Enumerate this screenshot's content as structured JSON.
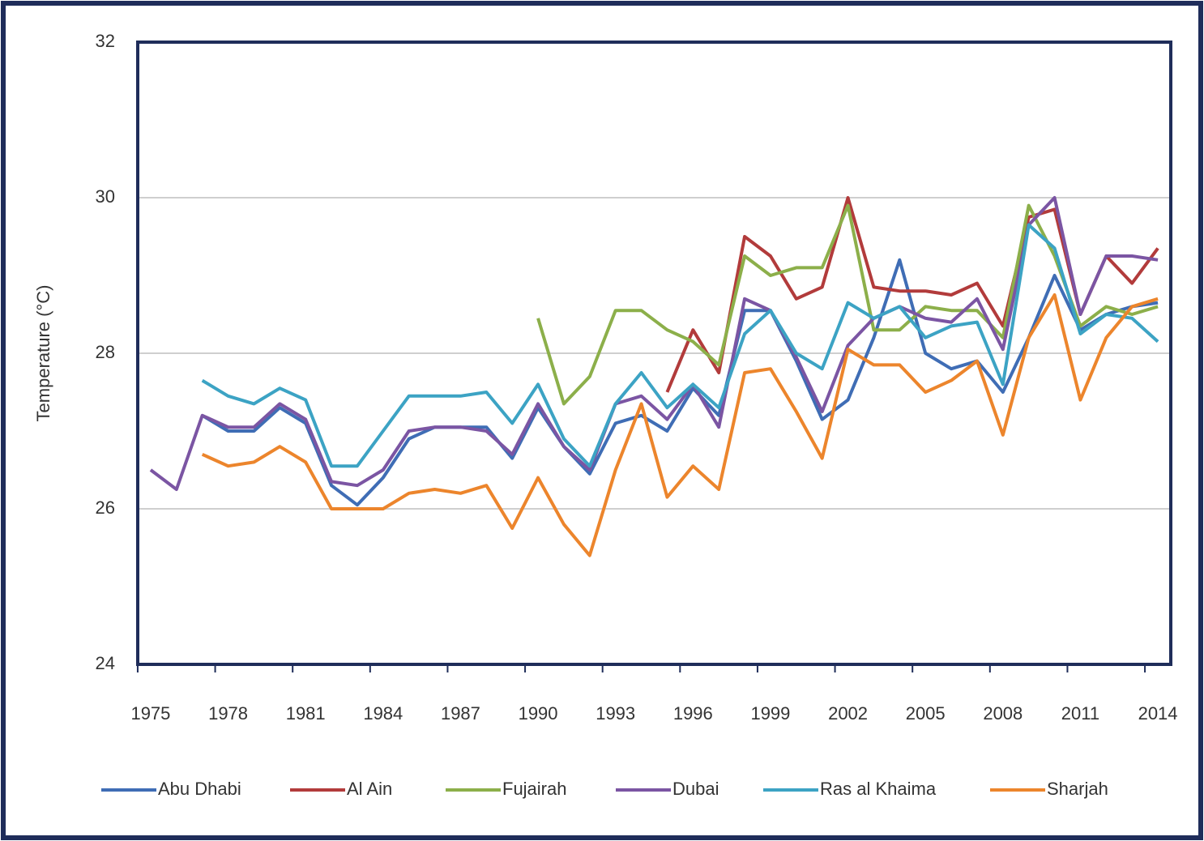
{
  "chart_data": {
    "type": "line",
    "y_label": "Temperature (°C)",
    "x": [
      1975,
      1976,
      1977,
      1978,
      1979,
      1980,
      1981,
      1982,
      1983,
      1984,
      1985,
      1986,
      1987,
      1988,
      1989,
      1990,
      1991,
      1992,
      1993,
      1994,
      1995,
      1996,
      1997,
      1998,
      1999,
      2000,
      2001,
      2002,
      2003,
      2004,
      2005,
      2006,
      2007,
      2008,
      2009,
      2010,
      2011,
      2012,
      2013,
      2014
    ],
    "xlim": [
      1974.5,
      2014.5
    ],
    "xticks": [
      1975,
      1978,
      1981,
      1984,
      1987,
      1990,
      1993,
      1996,
      1999,
      2002,
      2005,
      2008,
      2011,
      2014
    ],
    "ylim": [
      24,
      32
    ],
    "yticks": [
      24,
      26,
      28,
      30,
      32
    ],
    "grid": true,
    "legend": "bottom",
    "series": [
      {
        "name": "Abu Dhabi",
        "color": "#3f6db5",
        "values": [
          null,
          null,
          27.2,
          27.0,
          27.0,
          27.3,
          27.1,
          26.3,
          26.05,
          26.4,
          26.9,
          27.05,
          27.05,
          27.05,
          26.65,
          27.3,
          26.8,
          26.45,
          27.1,
          27.2,
          27.0,
          27.55,
          27.2,
          28.55,
          28.55,
          27.9,
          27.15,
          27.4,
          28.2,
          29.2,
          28.0,
          27.8,
          27.9,
          27.5,
          28.2,
          29.0,
          28.3,
          28.5,
          28.6,
          28.65
        ]
      },
      {
        "name": "Al Ain",
        "color": "#b23b3b",
        "values": [
          null,
          null,
          null,
          null,
          null,
          null,
          null,
          null,
          null,
          null,
          null,
          null,
          null,
          null,
          null,
          null,
          null,
          null,
          null,
          null,
          27.5,
          28.3,
          27.75,
          29.5,
          29.25,
          28.7,
          28.85,
          30.0,
          28.85,
          28.8,
          28.8,
          28.75,
          28.9,
          28.35,
          29.75,
          29.85,
          28.5,
          29.25,
          28.9,
          29.35
        ]
      },
      {
        "name": "Fujairah",
        "color": "#8caf4a",
        "values": [
          null,
          null,
          null,
          null,
          null,
          null,
          null,
          null,
          null,
          null,
          null,
          null,
          null,
          null,
          null,
          28.45,
          27.35,
          27.7,
          28.55,
          28.55,
          28.3,
          28.15,
          27.85,
          29.25,
          29.0,
          29.1,
          29.1,
          29.9,
          28.3,
          28.3,
          28.6,
          28.55,
          28.55,
          28.2,
          29.9,
          29.25,
          28.35,
          28.6,
          28.5,
          28.6
        ]
      },
      {
        "name": "Dubai",
        "color": "#7b55a3",
        "values": [
          26.5,
          26.25,
          27.2,
          27.05,
          27.05,
          27.35,
          27.15,
          26.35,
          26.3,
          26.5,
          27.0,
          27.05,
          27.05,
          27.0,
          26.7,
          27.35,
          26.8,
          26.5,
          27.35,
          27.45,
          27.15,
          27.6,
          27.05,
          28.7,
          28.55,
          27.95,
          27.25,
          28.1,
          28.45,
          28.6,
          28.45,
          28.4,
          28.7,
          28.05,
          29.65,
          30.0,
          28.5,
          29.25,
          29.25,
          29.2
        ]
      },
      {
        "name": "Ras al Khaima",
        "color": "#3ca3c4",
        "values": [
          null,
          null,
          27.65,
          27.45,
          27.35,
          27.55,
          27.4,
          26.55,
          26.55,
          27.0,
          27.45,
          27.45,
          27.45,
          27.5,
          27.1,
          27.6,
          26.9,
          26.55,
          27.35,
          27.75,
          27.3,
          27.6,
          27.3,
          28.25,
          28.55,
          28.0,
          27.8,
          28.65,
          28.45,
          28.6,
          28.2,
          28.35,
          28.4,
          27.6,
          29.65,
          29.35,
          28.25,
          28.5,
          28.45,
          28.15
        ]
      },
      {
        "name": "Sharjah",
        "color": "#ec852c",
        "values": [
          null,
          null,
          26.7,
          26.55,
          26.6,
          26.8,
          26.6,
          26.0,
          26.0,
          26.0,
          26.2,
          26.25,
          26.2,
          26.3,
          25.75,
          26.4,
          25.8,
          25.4,
          26.5,
          27.35,
          26.15,
          26.55,
          26.25,
          27.75,
          27.8,
          27.25,
          26.65,
          28.05,
          27.85,
          27.85,
          27.5,
          27.65,
          27.9,
          26.95,
          28.2,
          28.75,
          27.4,
          28.2,
          28.6,
          28.7
        ]
      }
    ]
  }
}
